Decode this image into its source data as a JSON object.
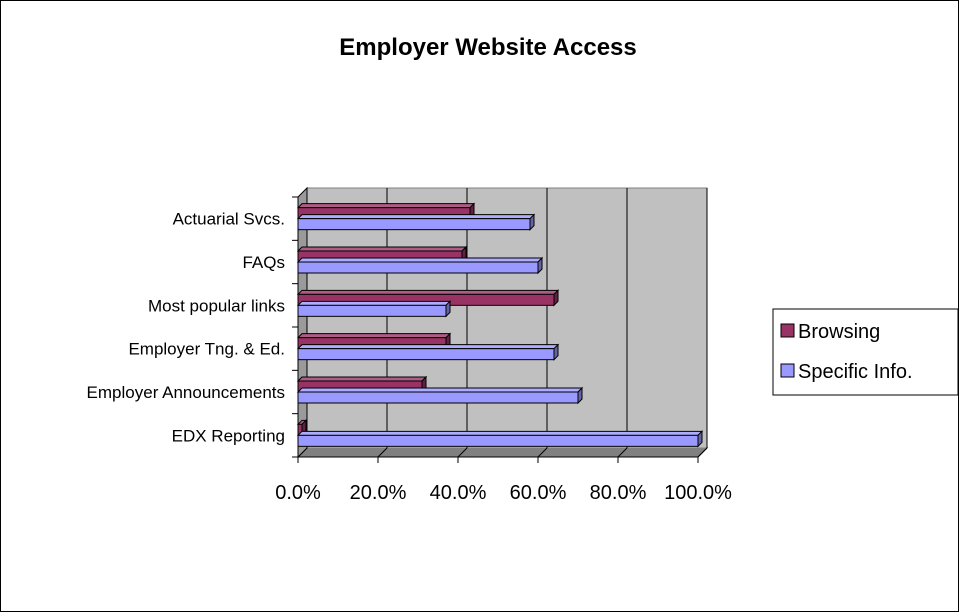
{
  "chart_data": {
    "type": "bar",
    "orientation": "horizontal",
    "title": "Employer Website Access",
    "xlabel": "",
    "ylabel": "",
    "categories": [
      "EDX Reporting",
      "Employer Announcements",
      "Employer Tng. & Ed.",
      "Most popular links",
      "FAQs",
      "Actuarial Svcs."
    ],
    "series": [
      {
        "name": "Browsing",
        "color": "#993366",
        "values": [
          1,
          31,
          37,
          64,
          41,
          43
        ]
      },
      {
        "name": "Specific Info.",
        "color": "#9999FF",
        "values": [
          100,
          70,
          64,
          37,
          60,
          58
        ]
      }
    ],
    "xlim": [
      0,
      100
    ],
    "x_ticks": [
      "0.0%",
      "20.0%",
      "40.0%",
      "60.0%",
      "80.0%",
      "100.0%"
    ],
    "grid": true,
    "plot_background": "#C0C0C0",
    "legend_position": "right"
  }
}
